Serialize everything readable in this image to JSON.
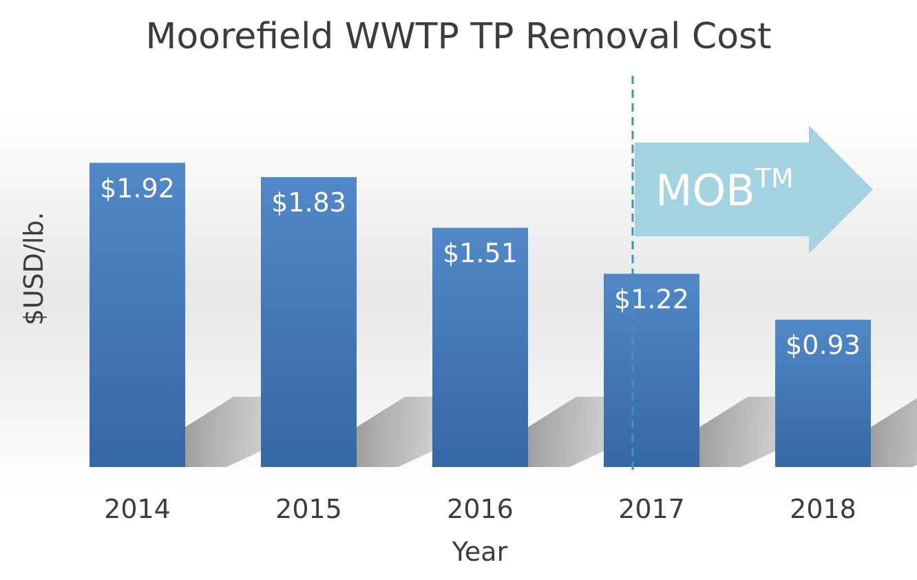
{
  "chart_data": {
    "type": "bar",
    "title": "Moorefield WWTP TP Removal Cost",
    "xlabel": "Year",
    "ylabel": "$USD/lb.",
    "categories": [
      "2014",
      "2015",
      "2016",
      "2017",
      "2018"
    ],
    "values": [
      1.92,
      1.83,
      1.51,
      1.22,
      0.93
    ],
    "data_labels": [
      "$1.92",
      "$1.83",
      "$1.51",
      "$1.22",
      "$0.93"
    ],
    "ylim": [
      0,
      2.0
    ],
    "grid": false,
    "legend": "none",
    "annotations": {
      "marker_category": "2017",
      "arrow_label": "MOB",
      "arrow_label_superscript": "TM"
    },
    "colors": {
      "bar_top": "#5188C8",
      "bar_bottom": "#3568A4",
      "label": "#ffffff",
      "text": "#3C3C3C",
      "dashed_line": "#3A97B4",
      "arrow": "#A3D2E0",
      "shadow": "#9E9E9E"
    }
  }
}
